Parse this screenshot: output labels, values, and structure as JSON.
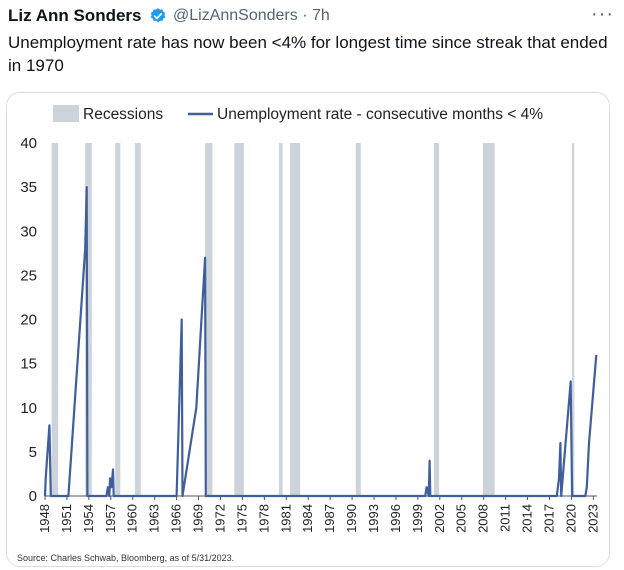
{
  "tweet": {
    "author_name": "Liz Ann Sonders",
    "handle_time": "@LizAnnSonders · 7h",
    "text": "Unemployment rate has now been <4% for longest time since streak that ended in 1970",
    "more_label": "···",
    "verified_icon": "verified-badge-icon",
    "verified_color": "#1d9bf0"
  },
  "chart_data": {
    "type": "line",
    "title": "",
    "xlabel": "",
    "ylabel": "",
    "ylim": [
      0,
      40
    ],
    "xlim": [
      1948,
      2023.5
    ],
    "yticks": [
      "0",
      "5",
      "10",
      "15",
      "20",
      "25",
      "30",
      "35",
      "40"
    ],
    "xticks": [
      "1948",
      "1951",
      "1954",
      "1957",
      "1960",
      "1963",
      "1966",
      "1969",
      "1972",
      "1975",
      "1978",
      "1981",
      "1984",
      "1987",
      "1990",
      "1993",
      "1996",
      "1999",
      "2002",
      "2005",
      "2008",
      "2011",
      "2014",
      "2017",
      "2020",
      "2023"
    ],
    "legend": [
      "Recessions",
      "Unemployment rate - consecutive months < 4%"
    ],
    "legend_placement": "top",
    "grid": false,
    "source": "Source: Charles Schwab, Bloomberg, as of 5/31/2023.",
    "recession_color": "#cdd3db",
    "line_color": "#3f5f9c",
    "recessions": [
      [
        1948.9,
        1949.8
      ],
      [
        1953.5,
        1954.4
      ],
      [
        1957.6,
        1958.3
      ],
      [
        1960.3,
        1961.1
      ],
      [
        1969.9,
        1970.9
      ],
      [
        1973.9,
        1975.2
      ],
      [
        1980.0,
        1980.5
      ],
      [
        1981.5,
        1982.9
      ],
      [
        1990.5,
        1991.2
      ],
      [
        2001.2,
        2001.9
      ],
      [
        2007.9,
        2009.5
      ],
      [
        2020.1,
        2020.4
      ]
    ],
    "series": [
      {
        "name": "Unemployment rate - consecutive months < 4%",
        "points": [
          [
            1948.0,
            0
          ],
          [
            1948.1,
            2
          ],
          [
            1948.6,
            8
          ],
          [
            1948.8,
            0
          ],
          [
            1951.2,
            0
          ],
          [
            1953.5,
            28
          ],
          [
            1953.7,
            35
          ],
          [
            1953.8,
            0
          ],
          [
            1956.4,
            0
          ],
          [
            1956.6,
            1
          ],
          [
            1956.8,
            0
          ],
          [
            1956.9,
            2
          ],
          [
            1957.1,
            1
          ],
          [
            1957.3,
            3
          ],
          [
            1957.4,
            0
          ],
          [
            1966.0,
            0
          ],
          [
            1966.7,
            20
          ],
          [
            1966.8,
            0
          ],
          [
            1968.7,
            10
          ],
          [
            1969.9,
            27
          ],
          [
            1970.0,
            0
          ],
          [
            2000.0,
            0
          ],
          [
            2000.2,
            1
          ],
          [
            2000.5,
            0
          ],
          [
            2000.6,
            4
          ],
          [
            2000.7,
            0
          ],
          [
            2018.0,
            0
          ],
          [
            2018.3,
            2
          ],
          [
            2018.5,
            6
          ],
          [
            2018.6,
            0
          ],
          [
            2019.6,
            10
          ],
          [
            2019.9,
            13
          ],
          [
            2020.1,
            0
          ],
          [
            2021.9,
            0
          ],
          [
            2022.1,
            1
          ],
          [
            2022.4,
            6
          ],
          [
            2023.4,
            16
          ]
        ]
      }
    ]
  }
}
